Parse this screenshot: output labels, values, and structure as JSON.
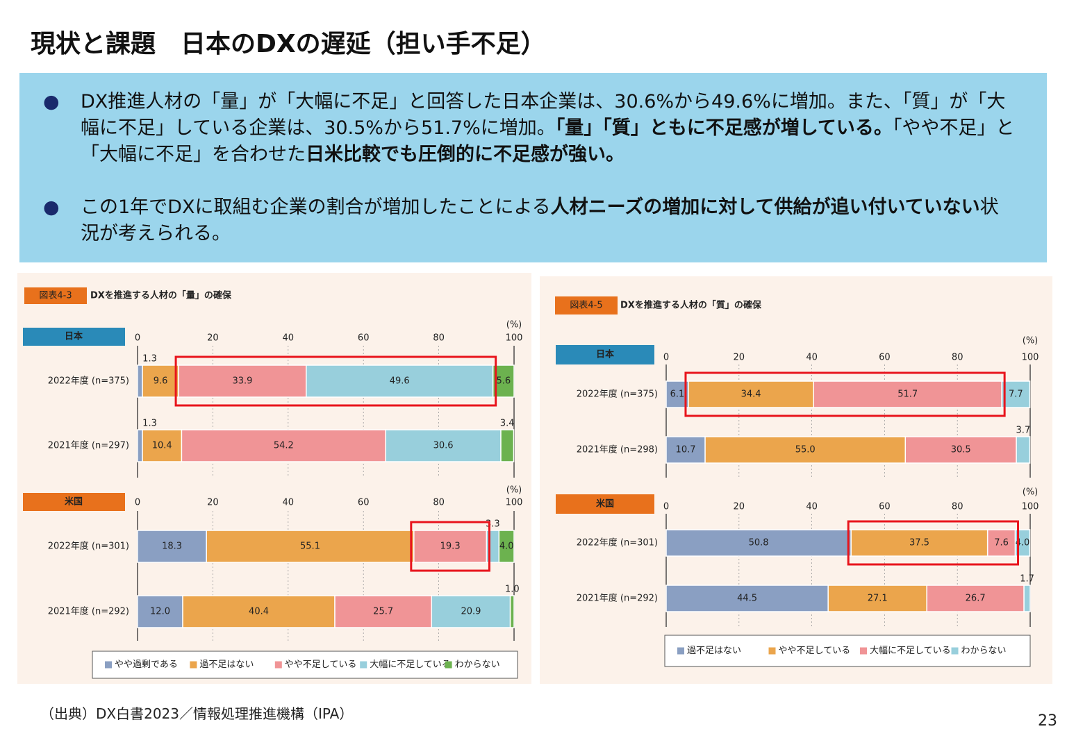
{
  "title": "現状と課題　日本のDXの遅延（担い手不足）",
  "bullets": [
    [
      {
        "text": "DX推進人材の「量」が「大幅に不足」と回答した日本企業は、30.6%から49.6%に増加。また、「質」が「大幅に不足」している企業は、30.5%から51.7%に増加。",
        "bold": false
      },
      {
        "text": "「量」「質」ともに不足感が増している。",
        "bold": true
      },
      {
        "text": "「やや不足」と「大幅に不足」を合わせた",
        "bold": false
      },
      {
        "text": "日米比較でも圧倒的に不足感が強い。",
        "bold": true
      }
    ],
    [
      {
        "text": "この1年でDXに取組む企業の割合が増加したことによる",
        "bold": false
      },
      {
        "text": "人材ニーズの増加に対して供給が追い付いていない",
        "bold": true
      },
      {
        "text": "状況が考えられる。",
        "bold": false
      }
    ]
  ],
  "chart_data": [
    {
      "type": "bar",
      "orientation": "horizontal",
      "stacked": true,
      "label": "図表4-3",
      "title": "DXを推進する人材の「量」の確保",
      "unit": "(%)",
      "xlim": [
        0,
        100
      ],
      "xticks": [
        0,
        20,
        40,
        60,
        80,
        100
      ],
      "panels": [
        "日本",
        "米国"
      ],
      "panel_colors": [
        "#2a8ab8",
        "#e8711c"
      ],
      "categories": [
        [
          "2022年度 (n=375)",
          "2021年度 (n=297)"
        ],
        [
          "2022年度 (n=301)",
          "2021年度 (n=292)"
        ]
      ],
      "series": [
        {
          "name": "やや過剰である",
          "color": "#8a9fc2",
          "values": [
            [
              1.3,
              1.3
            ],
            [
              18.3,
              12.0
            ]
          ],
          "value_labels": [
            [
              "1.3",
              "1.3"
            ],
            [
              "18.3",
              "12.0"
            ]
          ]
        },
        {
          "name": "過不足はない",
          "color": "#eba54c",
          "values": [
            [
              9.6,
              10.4
            ],
            [
              55.1,
              40.4
            ]
          ],
          "value_labels": [
            [
              "9.6",
              "10.4"
            ],
            [
              "55.1",
              "40.4"
            ]
          ]
        },
        {
          "name": "やや不足している",
          "color": "#f09496",
          "values": [
            [
              33.9,
              54.2
            ],
            [
              19.3,
              25.7
            ]
          ],
          "value_labels": [
            [
              "33.9",
              "54.2"
            ],
            [
              "19.3",
              "25.7"
            ]
          ]
        },
        {
          "name": "大幅に不足している",
          "color": "#98cfdc",
          "values": [
            [
              49.6,
              30.6
            ],
            [
              3.3,
              20.9
            ]
          ],
          "value_labels": [
            [
              "49.6",
              "30.6"
            ],
            [
              "3.3",
              "20.9"
            ]
          ]
        },
        {
          "name": "わからない",
          "color": "#6cb24f",
          "values": [
            [
              5.6,
              3.4
            ],
            [
              4.0,
              1.0
            ]
          ],
          "value_labels": [
            [
              "5.6",
              "3.4"
            ],
            [
              "4.0",
              "1.0"
            ]
          ]
        }
      ]
    },
    {
      "type": "bar",
      "orientation": "horizontal",
      "stacked": true,
      "label": "図表4-5",
      "title": "DXを推進する人材の「質」の確保",
      "unit": "(%)",
      "xlim": [
        0,
        100
      ],
      "xticks": [
        0,
        20,
        40,
        60,
        80,
        100
      ],
      "panels": [
        "日本",
        "米国"
      ],
      "panel_colors": [
        "#2a8ab8",
        "#e8711c"
      ],
      "categories": [
        [
          "2022年度 (n=375)",
          "2021年度 (n=298)"
        ],
        [
          "2022年度 (n=301)",
          "2021年度 (n=292)"
        ]
      ],
      "series": [
        {
          "name": "過不足はない",
          "color": "#8a9fc2",
          "values": [
            [
              6.1,
              10.7
            ],
            [
              50.8,
              44.5
            ]
          ],
          "value_labels": [
            [
              "6.1",
              "10.7"
            ],
            [
              "50.8",
              "44.5"
            ]
          ]
        },
        {
          "name": "やや不足している",
          "color": "#eba54c",
          "values": [
            [
              34.4,
              55.0
            ],
            [
              37.5,
              27.1
            ]
          ],
          "value_labels": [
            [
              "34.4",
              "55.0"
            ],
            [
              "37.5",
              "27.1"
            ]
          ]
        },
        {
          "name": "大幅に不足している",
          "color": "#f09496",
          "values": [
            [
              51.7,
              30.5
            ],
            [
              7.6,
              26.7
            ]
          ],
          "value_labels": [
            [
              "51.7",
              "30.5"
            ],
            [
              "7.6",
              "26.7"
            ]
          ]
        },
        {
          "name": "わからない",
          "color": "#98cfdc",
          "values": [
            [
              7.7,
              3.7
            ],
            [
              4.0,
              1.7
            ]
          ],
          "value_labels": [
            [
              "7.7",
              "3.7"
            ],
            [
              "4.0",
              "1.7"
            ]
          ]
        }
      ]
    }
  ],
  "source": "（出典）DX白書2023／情報処理推進機構（IPA）",
  "page_number": "23"
}
